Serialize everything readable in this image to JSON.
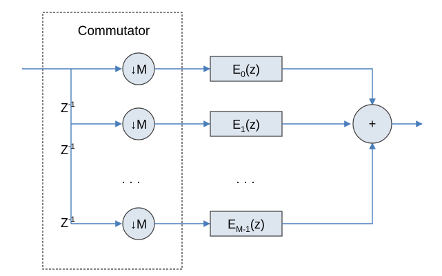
{
  "commutator": {
    "label": "Commutator"
  },
  "delays": [
    {
      "base": "Z",
      "exp": "-1"
    },
    {
      "base": "Z",
      "exp": "-1"
    },
    {
      "base": "Z",
      "exp": "-1"
    }
  ],
  "downsamplers": [
    "↓M",
    "↓M",
    "↓M"
  ],
  "filters": [
    {
      "base": "E",
      "sub": "0",
      "arg": "(z)"
    },
    {
      "base": "E",
      "sub": "1",
      "arg": "(z)"
    },
    {
      "base": "E",
      "sub": "M-1",
      "arg": "(z)"
    }
  ],
  "ellipsis": "· · ·",
  "adder": {
    "symbol": "+"
  },
  "colors": {
    "line": "#4a7ebb",
    "fill": "#dde5ef",
    "stroke": "#3a3a3a"
  }
}
